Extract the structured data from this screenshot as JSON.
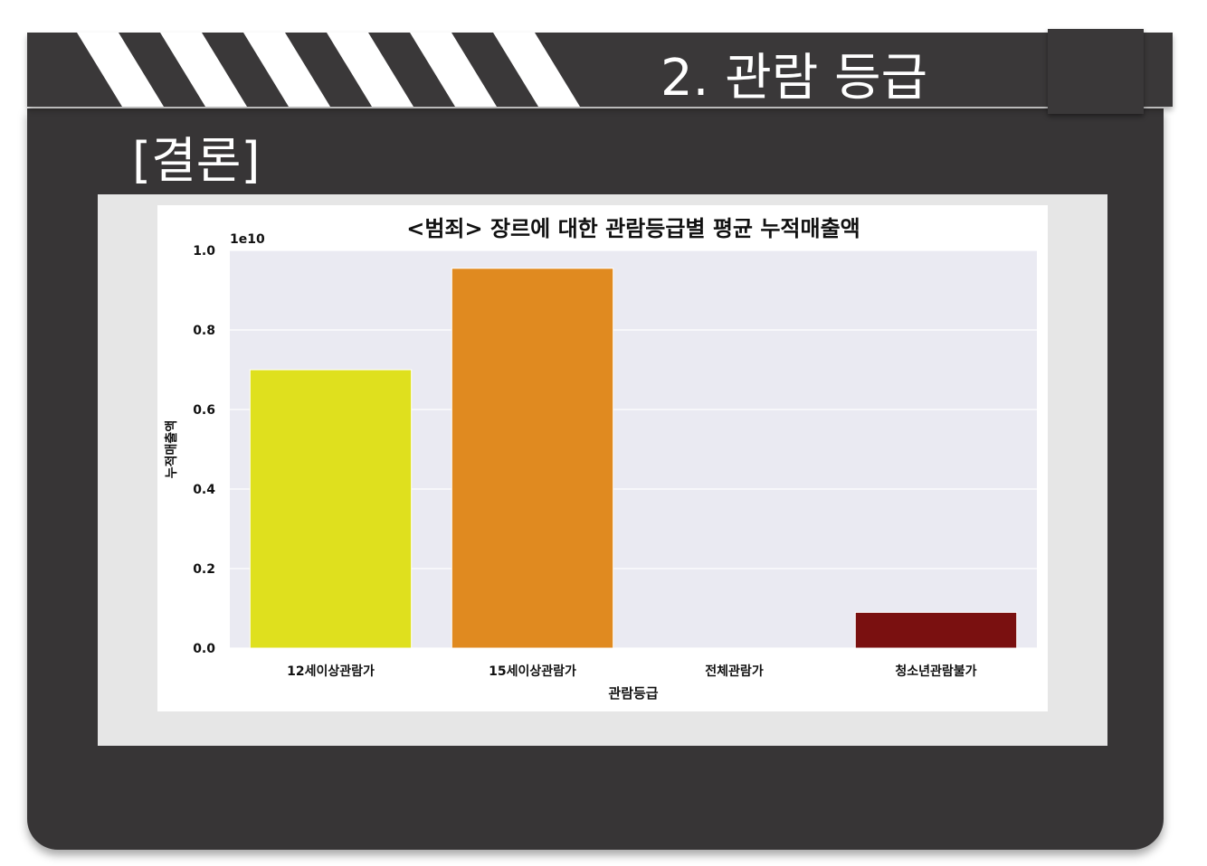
{
  "slide": {
    "title": "2. 관람 등급",
    "section_label": "[결론]"
  },
  "colors": {
    "board": "#373536",
    "stripe": "#ffffff",
    "plot_bg": "#eaeaf2",
    "frame": "#e6e6e6"
  },
  "chart_data": {
    "type": "bar",
    "title": "<범죄> 장르에 대한 관람등급별 평균 누적매출액",
    "xlabel": "관람등급",
    "ylabel": "누적매출액",
    "y_offset_label": "1e10",
    "categories": [
      "12세이상관람가",
      "15세이상관람가",
      "전체관람가",
      "청소년관람불가"
    ],
    "values": [
      0.7,
      0.955,
      0.0,
      0.09
    ],
    "bar_colors": [
      "#dfe01e",
      "#e08a20",
      "#bbbbbb",
      "#7a1010"
    ],
    "ylim": [
      0,
      1.0
    ],
    "yticks": [
      0.0,
      0.2,
      0.4,
      0.6,
      0.8,
      1.0
    ],
    "ytick_labels": [
      "0.0",
      "0.2",
      "0.4",
      "0.6",
      "0.8",
      "1.0"
    ],
    "grid": true,
    "legend": "none"
  }
}
